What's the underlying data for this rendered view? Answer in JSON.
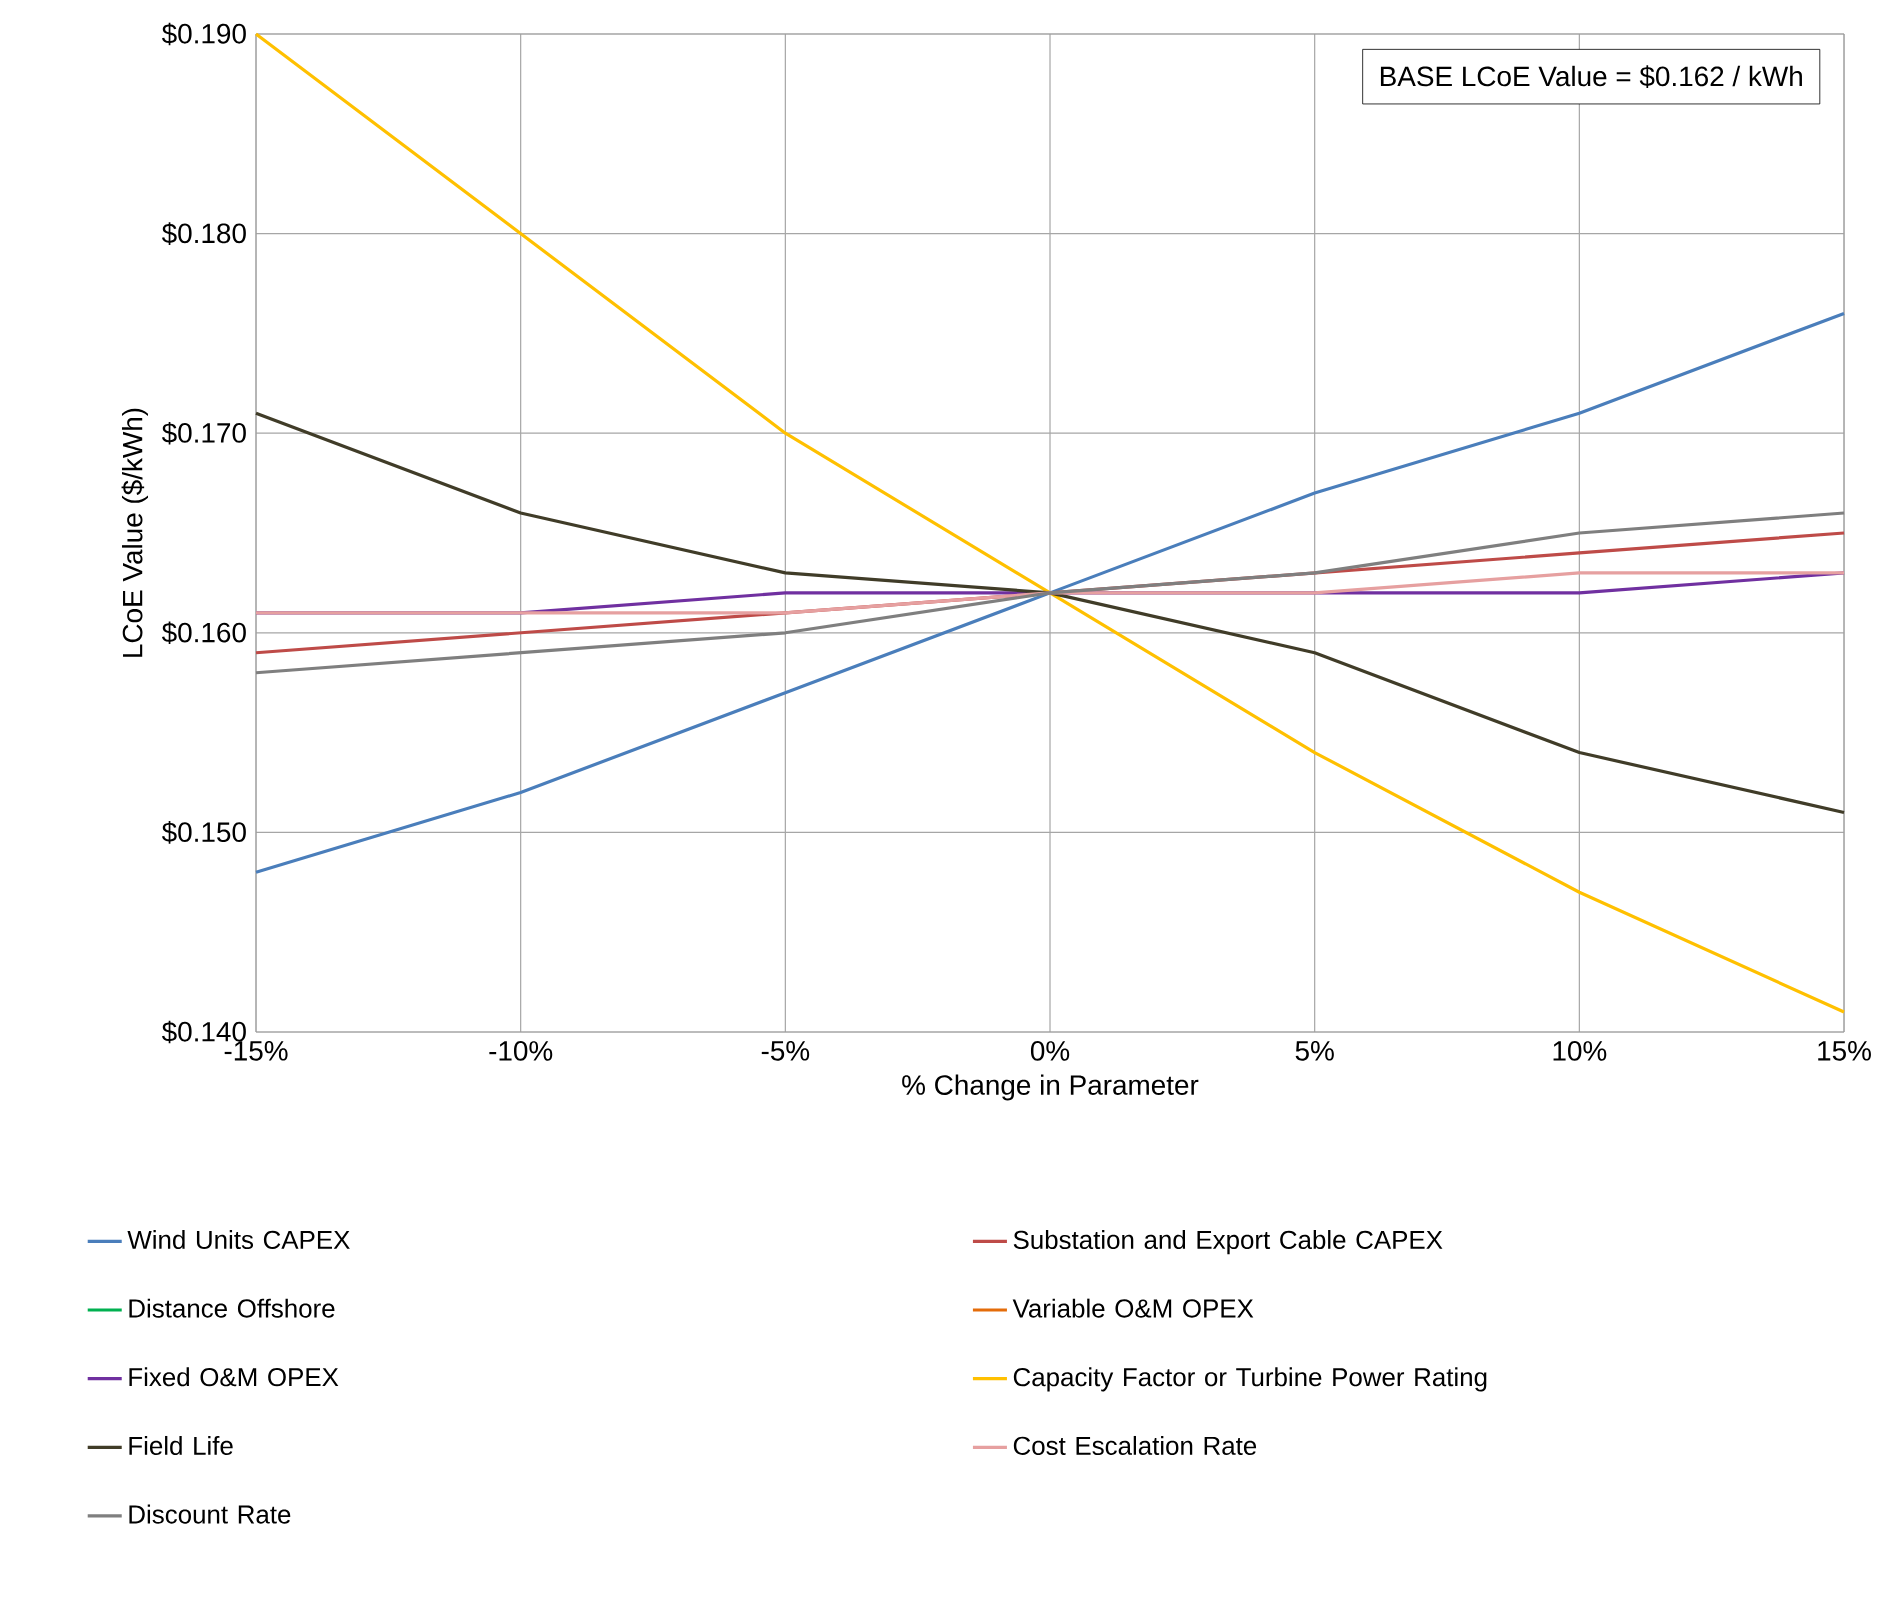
{
  "chart_data": {
    "type": "line",
    "xlabel": "% Change in Parameter",
    "ylabel": "LCoE Value ($/kWh)",
    "x": [
      -15,
      -10,
      -5,
      0,
      5,
      10,
      15
    ],
    "xlim": [
      -15,
      15
    ],
    "xticks": [
      {
        "value": -15,
        "label": "-15%"
      },
      {
        "value": -10,
        "label": "-10%"
      },
      {
        "value": -5,
        "label": "-5%"
      },
      {
        "value": 0,
        "label": "0%"
      },
      {
        "value": 5,
        "label": "5%"
      },
      {
        "value": 10,
        "label": "10%"
      },
      {
        "value": 15,
        "label": "15%"
      }
    ],
    "ylim": [
      0.14,
      0.19
    ],
    "yticks": [
      {
        "value": 0.14,
        "label": "$0.140"
      },
      {
        "value": 0.15,
        "label": "$0.150"
      },
      {
        "value": 0.16,
        "label": "$0.160"
      },
      {
        "value": 0.17,
        "label": "$0.170"
      },
      {
        "value": 0.18,
        "label": "$0.180"
      },
      {
        "value": 0.19,
        "label": "$0.190"
      }
    ],
    "grid": true,
    "legend": "bottom",
    "marker": "none",
    "line_style": "solid",
    "annotations": [
      "BASE LCoE Value = $0.162 / kWh"
    ],
    "series": [
      {
        "name": "Wind Units CAPEX",
        "color": "#4a7ebb",
        "values": [
          0.148,
          0.152,
          0.157,
          0.162,
          0.167,
          0.171,
          0.176
        ]
      },
      {
        "name": "Substation and Export Cable CAPEX",
        "color": "#be4b48",
        "values": [
          0.159,
          0.16,
          0.161,
          0.162,
          0.163,
          0.164,
          0.165
        ]
      },
      {
        "name": "Distance Offshore",
        "color": "#00b050",
        "values": [
          null,
          null,
          null,
          null,
          null,
          null,
          null
        ]
      },
      {
        "name": "Variable O&M OPEX",
        "color": "#e46c0a",
        "values": [
          null,
          null,
          null,
          null,
          null,
          null,
          null
        ]
      },
      {
        "name": "Fixed O&M OPEX",
        "color": "#7030a0",
        "values": [
          0.161,
          0.161,
          0.162,
          0.162,
          0.162,
          0.162,
          0.163
        ]
      },
      {
        "name": "Capacity Factor or Turbine Power Rating",
        "color": "#ffc000",
        "values": [
          0.19,
          0.18,
          0.17,
          0.162,
          0.154,
          0.147,
          0.141
        ]
      },
      {
        "name": "Field Life",
        "color": "#403c28",
        "values": [
          0.171,
          0.166,
          0.163,
          0.162,
          0.159,
          0.154,
          0.151
        ]
      },
      {
        "name": "Cost Escalation Rate",
        "color": "#e6a0a0",
        "values": [
          0.161,
          0.161,
          0.161,
          0.162,
          0.162,
          0.163,
          0.163
        ]
      },
      {
        "name": "Discount Rate",
        "color": "#7f7f7f",
        "values": [
          0.158,
          0.159,
          0.16,
          0.162,
          0.163,
          0.165,
          0.166
        ]
      }
    ]
  }
}
